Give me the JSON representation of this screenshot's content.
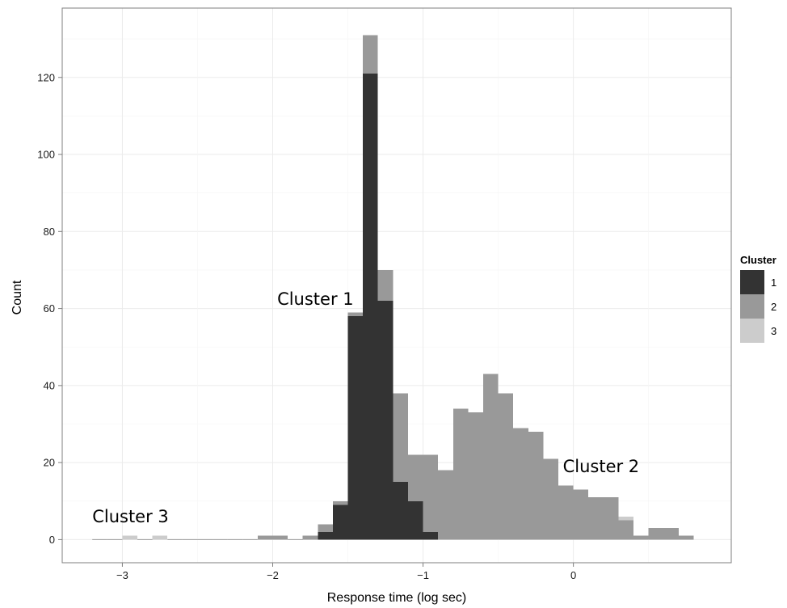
{
  "chart_data": {
    "type": "bar",
    "stacked": true,
    "xlabel": "Response time (log sec)",
    "ylabel": "Count",
    "xlim": [
      -3.4,
      1.05
    ],
    "ylim": [
      -6,
      138
    ],
    "bin_width": 0.1,
    "x_ticks": [
      -3,
      -2,
      -1,
      0
    ],
    "x_tick_labels": [
      "−3",
      "−2",
      "−1",
      "0"
    ],
    "y_ticks": [
      0,
      20,
      40,
      60,
      80,
      100,
      120
    ],
    "y_tick_labels": [
      "0",
      "20",
      "40",
      "60",
      "80",
      "100",
      "120"
    ],
    "grid": true,
    "colors": {
      "1": "#333333",
      "2": "#999999",
      "3": "#cccccc"
    },
    "legend": {
      "title": "Cluster",
      "position": "right",
      "entries": [
        "1",
        "2",
        "3"
      ]
    },
    "bin_starts": [
      -3.2,
      -3.1,
      -3.0,
      -2.9,
      -2.8,
      -2.7,
      -2.6,
      -2.5,
      -2.4,
      -2.3,
      -2.2,
      -2.1,
      -2.0,
      -1.9,
      -1.8,
      -1.7,
      -1.6,
      -1.5,
      -1.4,
      -1.3,
      -1.2,
      -1.1,
      -1.0,
      -0.9,
      -0.8,
      -0.7,
      -0.6,
      -0.5,
      -0.4,
      -0.3,
      -0.2,
      -0.1,
      0.0,
      0.1,
      0.2,
      0.3,
      0.4,
      0.5,
      0.6,
      0.7
    ],
    "series": [
      {
        "name": "1",
        "values": [
          0,
          0,
          0,
          0,
          0,
          0,
          0,
          0,
          0,
          0,
          0,
          0,
          0,
          0,
          0,
          2,
          9,
          58,
          121,
          62,
          15,
          10,
          2,
          0,
          0,
          0,
          0,
          0,
          0,
          0,
          0,
          0,
          0,
          0,
          0,
          0,
          0,
          0,
          0,
          0
        ]
      },
      {
        "name": "2",
        "values": [
          0,
          0,
          0,
          0,
          0,
          0,
          0,
          0,
          0,
          0,
          0,
          1,
          1,
          0,
          1,
          2,
          1,
          1,
          10,
          8,
          23,
          12,
          20,
          18,
          34,
          33,
          43,
          38,
          29,
          28,
          21,
          14,
          13,
          11,
          11,
          5,
          1,
          3,
          3,
          1
        ]
      },
      {
        "name": "3",
        "values": [
          0,
          0,
          1,
          0,
          1,
          0,
          0,
          0,
          0,
          0,
          0,
          0,
          0,
          0,
          0,
          0,
          0,
          0,
          0,
          0,
          0,
          0,
          0,
          0,
          0,
          0,
          0,
          0,
          0,
          0,
          0,
          0,
          0,
          0,
          0,
          1,
          0,
          0,
          0,
          0
        ]
      }
    ],
    "annotations": [
      {
        "text": "Cluster 1",
        "x": -1.97,
        "y": 61
      },
      {
        "text": "Cluster 2",
        "x": -0.07,
        "y": 17.5
      },
      {
        "text": "Cluster 3",
        "x": -3.2,
        "y": 4.5
      }
    ]
  }
}
